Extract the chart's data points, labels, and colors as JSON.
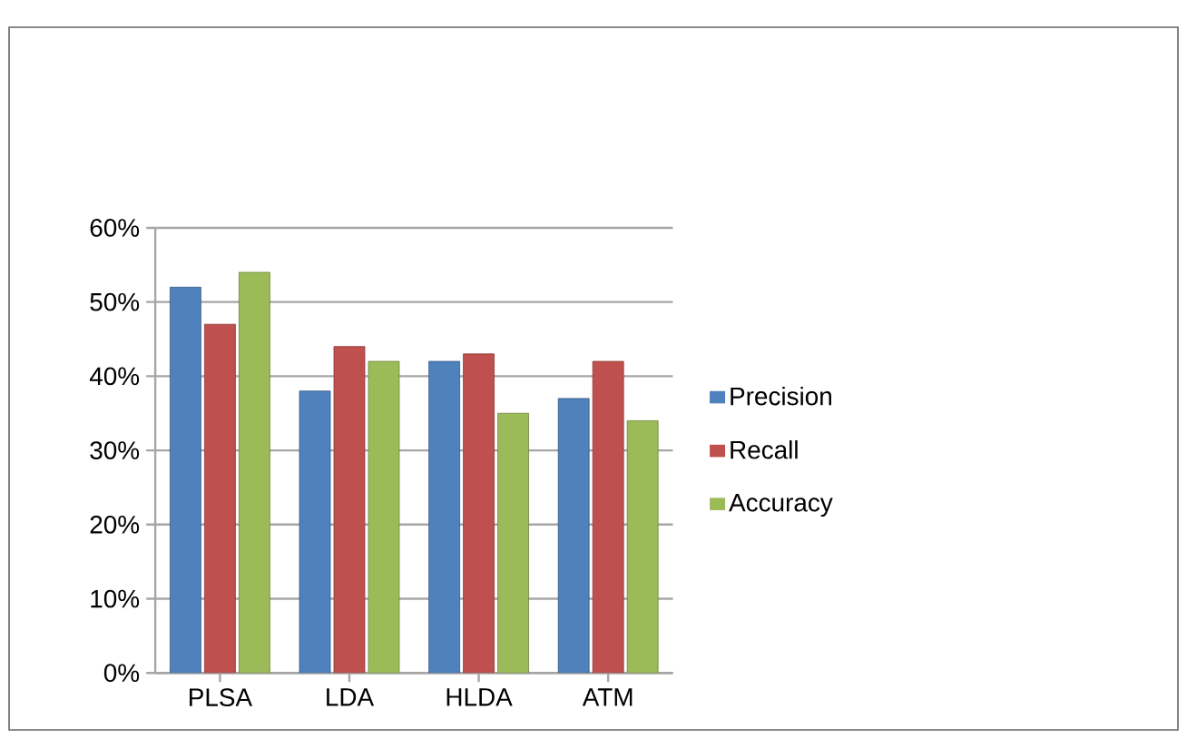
{
  "chart_data": {
    "type": "bar",
    "categories": [
      "PLSA",
      "LDA",
      "HLDA",
      "ATM"
    ],
    "series": [
      {
        "name": "Precision",
        "color": "#4f81bd",
        "values": [
          52,
          38,
          42,
          37
        ]
      },
      {
        "name": "Recall",
        "color": "#c0504d",
        "values": [
          47,
          44,
          43,
          42
        ]
      },
      {
        "name": "Accuracy",
        "color": "#9bbb59",
        "values": [
          54,
          42,
          35,
          34
        ]
      }
    ],
    "ylim": [
      0,
      60
    ],
    "yticks": [
      {
        "value": 0,
        "label": "0%"
      },
      {
        "value": 10,
        "label": "10%"
      },
      {
        "value": 20,
        "label": "20%"
      },
      {
        "value": 30,
        "label": "30%"
      },
      {
        "value": 40,
        "label": "40%"
      },
      {
        "value": 50,
        "label": "50%"
      },
      {
        "value": 60,
        "label": "60%"
      }
    ],
    "grid": "y",
    "legend": "right"
  }
}
